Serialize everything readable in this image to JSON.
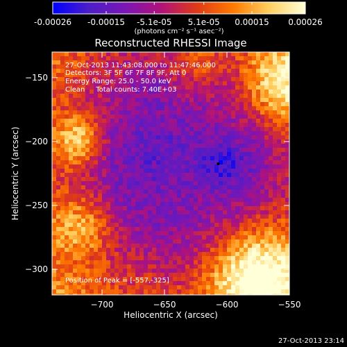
{
  "colors": {
    "colorbar_stops": [
      "#0000ff",
      "#4b1ec8",
      "#7a16b4",
      "#b0127a",
      "#e03a16",
      "#ff7a00",
      "#ffd060",
      "#ffffd8"
    ]
  },
  "colorbar": {
    "tick_labels": [
      "-0.00026",
      "-0.00015",
      "-5.1e-05",
      "5.1e-05",
      "0.00015",
      "0.00026"
    ],
    "tick_values": [
      -0.00026,
      -0.00015,
      -5.1e-05,
      5.1e-05,
      0.00015,
      0.00026
    ],
    "range": [
      -0.00026,
      0.00026
    ],
    "units_label": "(photons cm⁻² s⁻¹ asec⁻²)"
  },
  "chart_data": {
    "type": "heatmap",
    "title": "Reconstructed RHESSI Image",
    "xlabel": "Heliocentric X (arcsec)",
    "ylabel": "Heliocentric Y (arcsec)",
    "xlim": [
      -740,
      -550
    ],
    "ylim": [
      -320,
      -130
    ],
    "xticks": [
      -700,
      -650,
      -600,
      -550
    ],
    "xtick_labels": [
      "−700",
      "−650",
      "−600",
      "−550"
    ],
    "yticks": [
      -150,
      -200,
      -250,
      -300
    ],
    "ytick_labels": [
      "−150",
      "−200",
      "−250",
      "−300"
    ],
    "peak_position": [
      -557,
      -325
    ],
    "annotations": {
      "time_range": "27-Oct-2013 11:43:08.000 to 11:47:46.000",
      "detectors": "Detectors: 3F 5F 6F 7F 8F 9F, Att 0",
      "energy_range": "Energy Range: 25.0 - 50.0 keV",
      "clean_counts": "Clean     Total counts: 7.40E+03",
      "peak_label": "Position of Peak = [-557,-325]"
    }
  },
  "footer": {
    "timestamp": "27-Oct-2013 23:14"
  }
}
